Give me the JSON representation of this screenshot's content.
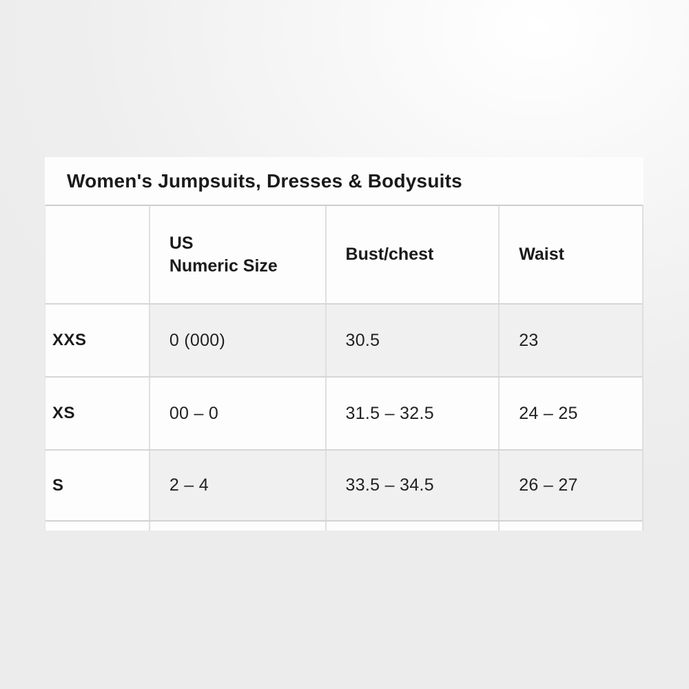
{
  "background": {
    "base_color": "#ededed",
    "highlight_color": "#ffffff"
  },
  "size_chart": {
    "title": "Women's Jumpsuits, Dresses & Bodysuits",
    "header": {
      "size_column": "",
      "us_numeric_size_line1": "US",
      "us_numeric_size_line2": "Numeric Size",
      "bust_chest": "Bust/chest",
      "waist": "Waist"
    },
    "rows": [
      {
        "size": "XXS",
        "us_numeric_size": "0 (000)",
        "bust_chest": "30.5",
        "waist": "23"
      },
      {
        "size": "XS",
        "us_numeric_size": "00 – 0",
        "bust_chest": "31.5 – 32.5",
        "waist": "24 – 25"
      },
      {
        "size": "S",
        "us_numeric_size": "2 – 4",
        "bust_chest": "33.5 – 34.5",
        "waist": "26 – 27"
      }
    ],
    "colors": {
      "text": "#1c1c1c",
      "cell_white": "#fdfdfd",
      "stripe_gray": "#f0f0f0",
      "grid_line": "#d6d6d6"
    }
  }
}
